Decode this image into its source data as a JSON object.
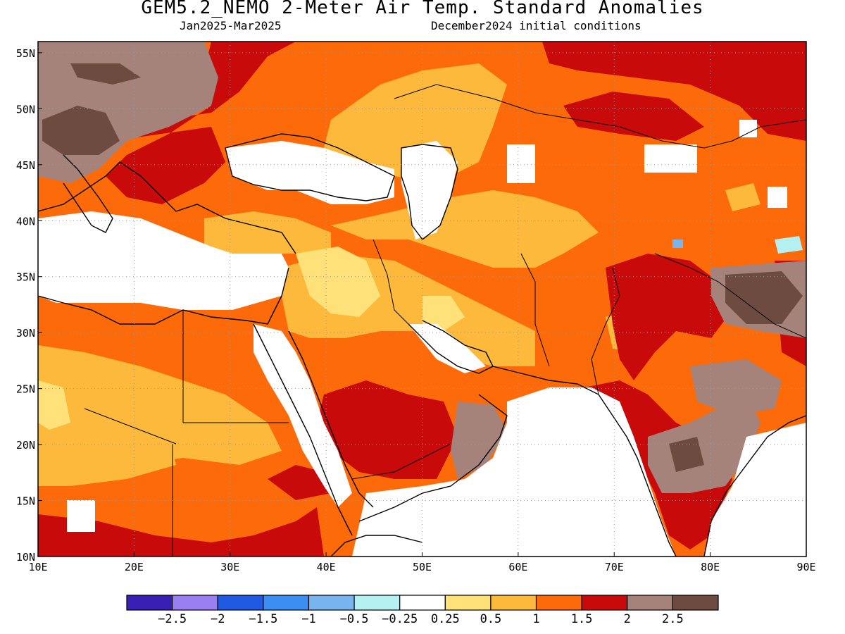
{
  "title": "GEM5.2_NEMO 2-Meter Air Temp. Standard Anomalies",
  "subtitle_left": "Jan2025-Mar2025",
  "subtitle_right": "December2024 initial conditions",
  "map": {
    "lon_range": [
      10,
      90
    ],
    "lat_range": [
      10,
      56
    ],
    "lon_ticks": [
      "10E",
      "20E",
      "30E",
      "40E",
      "50E",
      "60E",
      "70E",
      "80E",
      "90E"
    ],
    "lat_ticks": [
      "10N",
      "15N",
      "20N",
      "25N",
      "30N",
      "35N",
      "40N",
      "45N",
      "50N",
      "55N"
    ]
  },
  "colorbar": {
    "colors": [
      "#3a1fb4",
      "#9a7ff0",
      "#1f5ae0",
      "#3c8ff0",
      "#78b4f0",
      "#b4f0f0",
      "#ffffff",
      "#ffe17a",
      "#fcb93c",
      "#fc6a0a",
      "#c80a0a",
      "#a6837a",
      "#6e4b40"
    ],
    "labels": [
      "-2.5",
      "-2",
      "-1.5",
      "-1",
      "-0.5",
      "-0.25",
      "0.25",
      "0.5",
      "1",
      "1.5",
      "2",
      "2.5"
    ]
  },
  "colors": {
    "white": "#ffffff",
    "light_yellow": "#ffe17a",
    "yellow_orange": "#fcb93c",
    "orange": "#fc6a0a",
    "red": "#c80a0a",
    "light_brown": "#a6837a",
    "dark_brown": "#6e4b40",
    "light_blue": "#78b4f0",
    "cyan": "#b4f0f0"
  }
}
